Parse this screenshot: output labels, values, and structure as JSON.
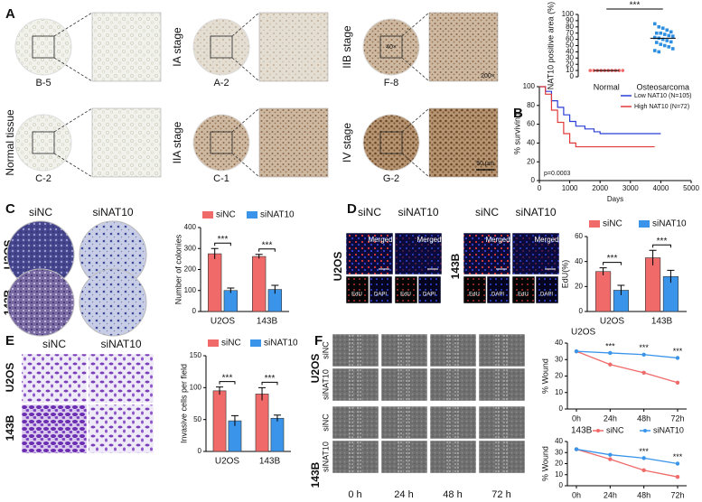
{
  "figure": {
    "A": {
      "letter": "A",
      "row_labels": [
        "IA stage",
        "IIB stage",
        "Normal tissue",
        "IIA stage",
        "IV stage"
      ],
      "sample_ids": [
        "B-5",
        "A-2",
        "F-8",
        "C-2",
        "C-1",
        "G-2"
      ],
      "magnifications": [
        "40×",
        "200×"
      ],
      "scale_bar": "50 μm"
    },
    "B": {
      "letter": "B"
    },
    "C": {
      "letter": "C",
      "columns": [
        "siNC",
        "siNAT10"
      ],
      "rows": [
        "U2OS",
        "143B"
      ]
    },
    "D": {
      "letter": "D",
      "columns": [
        "siNC",
        "siNAT10"
      ],
      "rows": [
        "U2OS",
        "143B"
      ],
      "merged": "Merged",
      "channels": [
        "EdU",
        "DAPI"
      ]
    },
    "E": {
      "letter": "E",
      "columns": [
        "siNC",
        "siNAT10"
      ],
      "rows": [
        "U2OS",
        "143B"
      ]
    },
    "F": {
      "letter": "F",
      "columns": [
        "0 h",
        "24 h",
        "48 h",
        "72 h"
      ],
      "cell_lines": [
        "U2OS",
        "143B"
      ],
      "conditions": [
        "siNC",
        "siNAT10"
      ]
    }
  },
  "chart_data": [
    {
      "type": "strip",
      "ylabel": "NAT10 positive area (%)",
      "categories": [
        "Normal",
        "Osteosarcoma"
      ],
      "groups": [
        {
          "color": "#f06a6a",
          "values": [
            10,
            10,
            10,
            10,
            10,
            10,
            10,
            10,
            10,
            10
          ]
        },
        {
          "color": "#2e8fe0",
          "values": [
            85,
            80,
            78,
            75,
            72,
            70,
            70,
            68,
            66,
            65,
            63,
            62,
            60,
            58,
            56,
            55,
            52,
            50,
            48,
            45,
            42,
            40
          ]
        }
      ],
      "ylim": [
        0,
        100
      ],
      "yticks": [
        0,
        10,
        20,
        30,
        40,
        50,
        60,
        70,
        80,
        90,
        100
      ],
      "annotations": [
        "***"
      ]
    },
    {
      "type": "survival",
      "xlabel": "Days",
      "ylabel": "% surviving",
      "annotation": "p=0.0003",
      "legend": "top-right",
      "series": [
        {
          "name": "Low NAT10 (N=105)",
          "color": "#2b3fd6",
          "x": [
            0,
            200,
            400,
            600,
            800,
            1000,
            1200,
            1500,
            1800,
            2000,
            2500,
            3000,
            4000
          ],
          "values": [
            100,
            95,
            85,
            78,
            70,
            63,
            58,
            55,
            52,
            50,
            50,
            50,
            50
          ]
        },
        {
          "name": "High NAT10 (N=72)",
          "color": "#e03a3a",
          "x": [
            0,
            200,
            400,
            600,
            800,
            1000,
            1200,
            1500,
            2000,
            3000,
            3800
          ],
          "values": [
            100,
            92,
            75,
            62,
            50,
            40,
            36,
            36,
            36,
            36,
            36
          ]
        }
      ],
      "xlim": [
        0,
        5000
      ],
      "xticks": [
        0,
        1000,
        2000,
        3000,
        4000,
        5000
      ],
      "ylim": [
        0,
        100
      ],
      "yticks": [
        0,
        20,
        40,
        60,
        80,
        100
      ]
    },
    {
      "type": "bar",
      "ylabel": "Number of colonies",
      "categories": [
        "U2OS",
        "143B"
      ],
      "legend": "top",
      "series": [
        {
          "name": "siNC",
          "color": "#f06a6a",
          "values": [
            275,
            262
          ],
          "errors": [
            25,
            10
          ]
        },
        {
          "name": "siNAT10",
          "color": "#3a95ea",
          "values": [
            100,
            105
          ],
          "errors": [
            12,
            20
          ]
        }
      ],
      "ylim": [
        0,
        400
      ],
      "yticks": [
        0,
        100,
        200,
        300,
        400
      ],
      "annotations": [
        "***",
        "***"
      ]
    },
    {
      "type": "bar",
      "ylabel": "EdU(%)",
      "categories": [
        "U2OS",
        "143B"
      ],
      "legend": "top",
      "series": [
        {
          "name": "siNC",
          "color": "#f06a6a",
          "values": [
            32,
            43
          ],
          "errors": [
            3,
            6
          ]
        },
        {
          "name": "siNAT10",
          "color": "#3a95ea",
          "values": [
            17,
            28
          ],
          "errors": [
            4,
            5
          ]
        }
      ],
      "ylim": [
        0,
        60
      ],
      "yticks": [
        0,
        20,
        40,
        60
      ],
      "annotations": [
        "***",
        "***"
      ]
    },
    {
      "type": "bar",
      "ylabel": "Invasive cells per field",
      "categories": [
        "U2OS",
        "143B"
      ],
      "legend": "top",
      "series": [
        {
          "name": "siNC",
          "color": "#f06a6a",
          "values": [
            95,
            90
          ],
          "errors": [
            6,
            10
          ]
        },
        {
          "name": "siNAT10",
          "color": "#3a95ea",
          "values": [
            48,
            52
          ],
          "errors": [
            8,
            5
          ]
        }
      ],
      "ylim": [
        0,
        150
      ],
      "yticks": [
        0,
        50,
        100,
        150
      ],
      "annotations": [
        "***",
        "***"
      ]
    },
    {
      "type": "line",
      "title": "U2OS",
      "ylabel": "% Wound",
      "categories": [
        "0h",
        "24h",
        "48h",
        "72h"
      ],
      "series": [
        {
          "color": "#f06a6a",
          "values": [
            35,
            27,
            22,
            16
          ]
        },
        {
          "color": "#3a95ea",
          "values": [
            35,
            34,
            33,
            31
          ]
        }
      ],
      "ylim": [
        0,
        40
      ],
      "yticks": [
        0,
        10,
        20,
        30,
        40
      ],
      "annotations": [
        null,
        "***",
        "***",
        "***"
      ]
    },
    {
      "type": "line",
      "title": "143B",
      "ylabel": "% Wound",
      "categories": [
        "0h",
        "24h",
        "48h",
        "72h"
      ],
      "legend": "top",
      "series": [
        {
          "name": "siNC",
          "color": "#f06a6a",
          "values": [
            33,
            24,
            14,
            8
          ]
        },
        {
          "name": "siNAT10",
          "color": "#3a95ea",
          "values": [
            33,
            28,
            25,
            20
          ]
        }
      ],
      "ylim": [
        0,
        40
      ],
      "yticks": [
        0,
        10,
        20,
        30,
        40
      ],
      "annotations": [
        null,
        null,
        "***",
        "***"
      ]
    }
  ]
}
